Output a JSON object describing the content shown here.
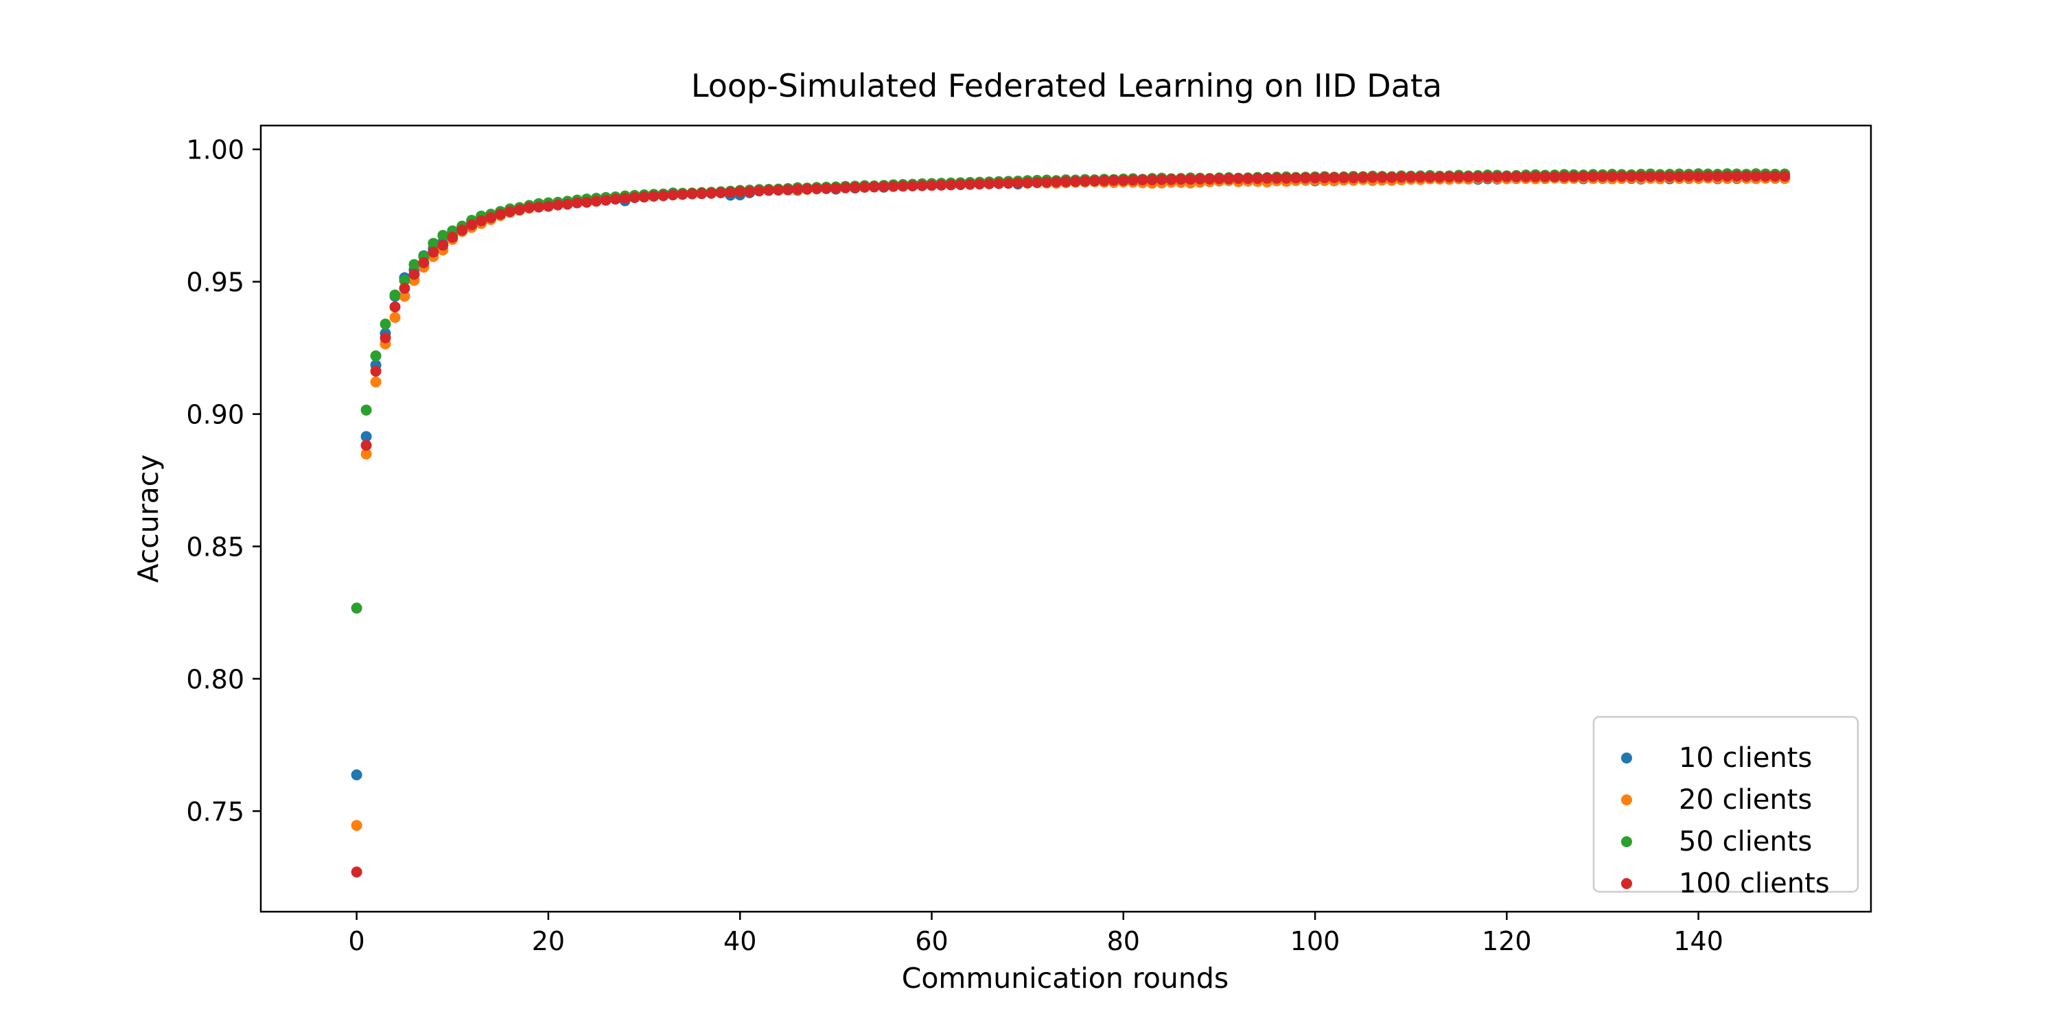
{
  "chart_data": {
    "type": "scatter",
    "title": "Loop-Simulated Federated Learning on IID Data",
    "xlabel": "Communication rounds",
    "ylabel": "Accuracy",
    "xlim": [
      -10,
      158
    ],
    "ylim": [
      0.712,
      1.009
    ],
    "xticks": [
      0,
      20,
      40,
      60,
      80,
      100,
      120,
      140
    ],
    "yticks": [
      0.75,
      0.8,
      0.85,
      0.9,
      0.95,
      1.0
    ],
    "ytick_labels": [
      "0.75",
      "0.80",
      "0.85",
      "0.90",
      "0.95",
      "1.00"
    ],
    "legend_position": "lower right",
    "x": [
      0,
      1,
      2,
      3,
      4,
      5,
      6,
      7,
      8,
      9,
      10,
      11,
      12,
      13,
      14,
      15,
      16,
      17,
      18,
      19,
      20,
      21,
      22,
      23,
      24,
      25,
      26,
      27,
      28,
      29,
      30,
      31,
      32,
      33,
      34,
      35,
      36,
      37,
      38,
      39,
      40,
      41,
      42,
      43,
      44,
      45,
      46,
      47,
      48,
      49,
      50,
      51,
      52,
      53,
      54,
      55,
      56,
      57,
      58,
      59,
      60,
      61,
      62,
      63,
      64,
      65,
      66,
      67,
      68,
      69,
      70,
      71,
      72,
      73,
      74,
      75,
      76,
      77,
      78,
      79,
      80,
      81,
      82,
      83,
      84,
      85,
      86,
      87,
      88,
      89,
      90,
      91,
      92,
      93,
      94,
      95,
      96,
      97,
      98,
      99,
      100,
      101,
      102,
      103,
      104,
      105,
      106,
      107,
      108,
      109,
      110,
      111,
      112,
      113,
      114,
      115,
      116,
      117,
      118,
      119,
      120,
      121,
      122,
      123,
      124,
      125,
      126,
      127,
      128,
      129,
      130,
      131,
      132,
      133,
      134,
      135,
      136,
      137,
      138,
      139,
      140,
      141,
      142,
      143,
      144,
      145,
      146,
      147,
      148,
      149
    ],
    "series": [
      {
        "name": "10 clients",
        "color": "#1f77b4",
        "values": [
          0.7637,
          0.8915,
          0.9185,
          0.9305,
          0.9445,
          0.9515,
          0.9545,
          0.9598,
          0.9625,
          0.965,
          0.968,
          0.9705,
          0.9722,
          0.9738,
          0.975,
          0.9765,
          0.9772,
          0.978,
          0.9785,
          0.979,
          0.9795,
          0.9798,
          0.98,
          0.9808,
          0.9812,
          0.9815,
          0.9818,
          0.982,
          0.9806,
          0.9825,
          0.9828,
          0.9827,
          0.9831,
          0.9835,
          0.9832,
          0.9834,
          0.9833,
          0.9837,
          0.9839,
          0.9827,
          0.9828,
          0.9836,
          0.9848,
          0.9846,
          0.9847,
          0.9848,
          0.9845,
          0.9852,
          0.9853,
          0.9855,
          0.985,
          0.9855,
          0.9854,
          0.986,
          0.9861,
          0.9857,
          0.9863,
          0.9862,
          0.9864,
          0.9868,
          0.9866,
          0.9868,
          0.9867,
          0.9869,
          0.987,
          0.9872,
          0.9873,
          0.9874,
          0.9873,
          0.9869,
          0.9873,
          0.9876,
          0.9875,
          0.9879,
          0.988,
          0.9879,
          0.9877,
          0.988,
          0.9882,
          0.9884,
          0.9883,
          0.9885,
          0.9881,
          0.9884,
          0.9885,
          0.9883,
          0.9882,
          0.988,
          0.9884,
          0.9886,
          0.9885,
          0.9884,
          0.9886,
          0.9885,
          0.9884,
          0.9886,
          0.9887,
          0.9886,
          0.9888,
          0.9886,
          0.9881,
          0.9883,
          0.9881,
          0.9887,
          0.9886,
          0.9888,
          0.9889,
          0.9891,
          0.9888,
          0.9889,
          0.989,
          0.9887,
          0.9889,
          0.989,
          0.9891,
          0.989,
          0.9888,
          0.9887,
          0.9889,
          0.9888,
          0.989,
          0.989,
          0.9891,
          0.9889,
          0.989,
          0.9892,
          0.989,
          0.9891,
          0.9889,
          0.9891,
          0.989,
          0.9889,
          0.9891,
          0.989,
          0.9888,
          0.9891,
          0.989,
          0.9889,
          0.9891,
          0.989,
          0.9891,
          0.9892,
          0.9889,
          0.9891,
          0.989,
          0.9891,
          0.989,
          0.9892,
          0.9891,
          0.9892
        ]
      },
      {
        "name": "20 clients",
        "color": "#ff7f0e",
        "values": [
          0.7446,
          0.8849,
          0.9121,
          0.9265,
          0.9365,
          0.9445,
          0.9505,
          0.9555,
          0.9595,
          0.962,
          0.966,
          0.969,
          0.9705,
          0.972,
          0.9735,
          0.975,
          0.9762,
          0.977,
          0.9778,
          0.9784,
          0.979,
          0.9795,
          0.9798,
          0.9802,
          0.9806,
          0.981,
          0.9812,
          0.9815,
          0.9818,
          0.982,
          0.9823,
          0.9825,
          0.9826,
          0.983,
          0.9832,
          0.9833,
          0.9835,
          0.9837,
          0.9838,
          0.984,
          0.9842,
          0.9843,
          0.9845,
          0.9846,
          0.9848,
          0.985,
          0.9846,
          0.9849,
          0.9852,
          0.9853,
          0.9854,
          0.9855,
          0.9856,
          0.9857,
          0.9858,
          0.986,
          0.9861,
          0.9862,
          0.9863,
          0.9865,
          0.9866,
          0.9867,
          0.9868,
          0.9869,
          0.987,
          0.9872,
          0.9873,
          0.9874,
          0.9875,
          0.9876,
          0.9872,
          0.9874,
          0.9873,
          0.9872,
          0.9874,
          0.9876,
          0.9877,
          0.9878,
          0.9876,
          0.9875,
          0.9877,
          0.9876,
          0.9874,
          0.9872,
          0.9873,
          0.9876,
          0.9875,
          0.9873,
          0.9876,
          0.9878,
          0.988,
          0.9882,
          0.9878,
          0.988,
          0.9879,
          0.9877,
          0.9881,
          0.9879,
          0.9882,
          0.9883,
          0.9884,
          0.9882,
          0.9881,
          0.9884,
          0.9883,
          0.9886,
          0.9882,
          0.9884,
          0.9883,
          0.9885,
          0.9887,
          0.9886,
          0.9889,
          0.9888,
          0.9887,
          0.9889,
          0.9888,
          0.9891,
          0.9893,
          0.989,
          0.9889,
          0.9891,
          0.989,
          0.9889,
          0.9891,
          0.9892,
          0.989,
          0.9891,
          0.9892,
          0.989,
          0.9891,
          0.9889,
          0.989,
          0.9892,
          0.989,
          0.9891,
          0.9889,
          0.9893,
          0.989,
          0.9891,
          0.989,
          0.9892,
          0.9891,
          0.989,
          0.9892,
          0.9891,
          0.989,
          0.9891,
          0.9892,
          0.989
        ]
      },
      {
        "name": "50 clients",
        "color": "#2ca02c",
        "values": [
          0.8267,
          0.9015,
          0.922,
          0.934,
          0.945,
          0.9505,
          0.9565,
          0.9595,
          0.9645,
          0.9675,
          0.9692,
          0.971,
          0.9732,
          0.9748,
          0.9755,
          0.9765,
          0.9775,
          0.978,
          0.9788,
          0.9795,
          0.9798,
          0.98,
          0.9804,
          0.9808,
          0.9812,
          0.9815,
          0.9818,
          0.982,
          0.9824,
          0.9826,
          0.9828,
          0.983,
          0.9831,
          0.9833,
          0.9834,
          0.9835,
          0.9837,
          0.9838,
          0.984,
          0.9842,
          0.9845,
          0.9846,
          0.9848,
          0.9849,
          0.985,
          0.9852,
          0.9855,
          0.9854,
          0.9856,
          0.9857,
          0.9858,
          0.986,
          0.9861,
          0.9863,
          0.9862,
          0.9864,
          0.9866,
          0.9867,
          0.9868,
          0.987,
          0.9871,
          0.9872,
          0.9873,
          0.9874,
          0.9875,
          0.9876,
          0.9877,
          0.9878,
          0.9879,
          0.988,
          0.9882,
          0.9883,
          0.9884,
          0.9882,
          0.9885,
          0.9884,
          0.9886,
          0.9885,
          0.9887,
          0.9886,
          0.9888,
          0.9889,
          0.9887,
          0.989,
          0.9891,
          0.9889,
          0.989,
          0.9892,
          0.9891,
          0.989,
          0.9892,
          0.9893,
          0.9891,
          0.9892,
          0.9894,
          0.9893,
          0.9895,
          0.9896,
          0.9894,
          0.9895,
          0.9896,
          0.9897,
          0.9895,
          0.9896,
          0.9898,
          0.9897,
          0.9899,
          0.9898,
          0.9897,
          0.99,
          0.9899,
          0.99,
          0.9901,
          0.9899,
          0.99,
          0.9902,
          0.99,
          0.9901,
          0.9903,
          0.9902,
          0.99,
          0.9901,
          0.9903,
          0.9904,
          0.9902,
          0.9903,
          0.9905,
          0.9904,
          0.9903,
          0.9905,
          0.9904,
          0.9906,
          0.9905,
          0.9904,
          0.9906,
          0.9907,
          0.9905,
          0.9906,
          0.9907,
          0.9906,
          0.9908,
          0.9907,
          0.9906,
          0.9908,
          0.9907,
          0.9906,
          0.9908,
          0.9907,
          0.9906,
          0.9907
        ]
      },
      {
        "name": "100 clients",
        "color": "#d62728",
        "values": [
          0.727,
          0.8882,
          0.9162,
          0.9288,
          0.9405,
          0.9475,
          0.9528,
          0.9572,
          0.9612,
          0.9638,
          0.9668,
          0.9695,
          0.9715,
          0.973,
          0.9742,
          0.9755,
          0.9765,
          0.9772,
          0.978,
          0.9782,
          0.9785,
          0.979,
          0.9793,
          0.9798,
          0.98,
          0.9804,
          0.9808,
          0.9812,
          0.9815,
          0.9818,
          0.982,
          0.9823,
          0.9825,
          0.9828,
          0.983,
          0.9832,
          0.9833,
          0.9834,
          0.9836,
          0.9838,
          0.984,
          0.9841,
          0.9843,
          0.9845,
          0.9846,
          0.9847,
          0.9849,
          0.985,
          0.9851,
          0.9852,
          0.9853,
          0.9855,
          0.9856,
          0.9857,
          0.9858,
          0.9859,
          0.986,
          0.9861,
          0.9862,
          0.9863,
          0.9864,
          0.9865,
          0.9866,
          0.9867,
          0.9868,
          0.9869,
          0.987,
          0.9871,
          0.9872,
          0.9873,
          0.9874,
          0.9875,
          0.9876,
          0.9877,
          0.9878,
          0.9879,
          0.988,
          0.9881,
          0.9882,
          0.9883,
          0.9883,
          0.9884,
          0.9885,
          0.9885,
          0.9886,
          0.9886,
          0.9887,
          0.9887,
          0.9888,
          0.9888,
          0.9889,
          0.9889,
          0.989,
          0.989,
          0.989,
          0.9891,
          0.9891,
          0.9891,
          0.9892,
          0.9892,
          0.9892,
          0.9893,
          0.9893,
          0.9893,
          0.9893,
          0.9894,
          0.9894,
          0.9894,
          0.9894,
          0.9895,
          0.9895,
          0.9895,
          0.9895,
          0.9895,
          0.9896,
          0.9896,
          0.9896,
          0.9896,
          0.9896,
          0.9896,
          0.9897,
          0.9897,
          0.9897,
          0.9897,
          0.9897,
          0.9897,
          0.9897,
          0.9897,
          0.9898,
          0.9898,
          0.9898,
          0.9898,
          0.9898,
          0.9898,
          0.9898,
          0.9898,
          0.9898,
          0.9898,
          0.9898,
          0.9899,
          0.9899,
          0.9899,
          0.9899,
          0.9899,
          0.9899,
          0.9899,
          0.9899,
          0.9899,
          0.9899,
          0.9899
        ]
      }
    ]
  }
}
